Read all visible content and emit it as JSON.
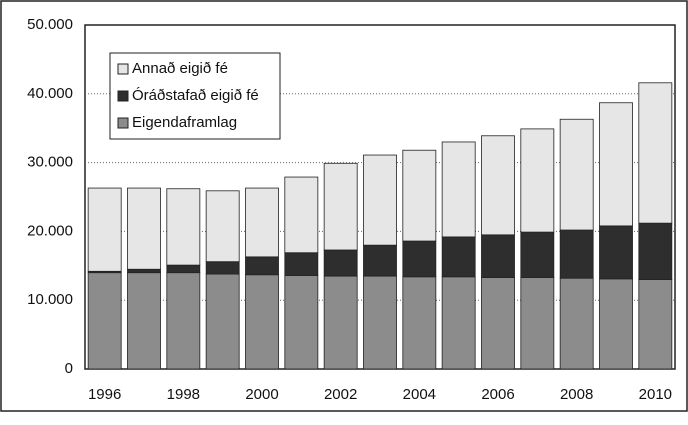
{
  "chart_data": {
    "type": "stacked-bar",
    "categories": [
      "1996",
      null,
      "1998",
      null,
      "2000",
      null,
      "2002",
      null,
      "2004",
      null,
      "2006",
      null,
      "2008",
      null,
      "2010"
    ],
    "series": [
      {
        "name": "Eigendaframlag",
        "color": "#8c8c8c",
        "values": [
          14000,
          14000,
          14000,
          13800,
          13700,
          13600,
          13500,
          13500,
          13400,
          13400,
          13300,
          13300,
          13200,
          13100,
          13000
        ]
      },
      {
        "name": "Óráðstafað eigið fé",
        "color": "#2e2e2e",
        "values": [
          200,
          500,
          1100,
          1800,
          2600,
          3300,
          3800,
          4500,
          5200,
          5800,
          6200,
          6600,
          7000,
          7700,
          8200
        ]
      },
      {
        "name": "Annað eigið fé",
        "color": "#e6e6e6",
        "values": [
          12100,
          11800,
          11100,
          10300,
          10000,
          11000,
          12600,
          13100,
          13200,
          13800,
          14400,
          15000,
          16100,
          17900,
          20400
        ]
      }
    ],
    "ylim": [
      0,
      50000
    ],
    "yticks": [
      0,
      {
        "value": 10000,
        "label": "10.000"
      },
      {
        "value": 20000,
        "label": "20.000"
      },
      {
        "value": 30000,
        "label": "30.000"
      },
      {
        "value": 40000,
        "label": "40.000"
      },
      {
        "value": 50000,
        "label": "50.000"
      }
    ],
    "grid": true,
    "legend": "top-left"
  }
}
